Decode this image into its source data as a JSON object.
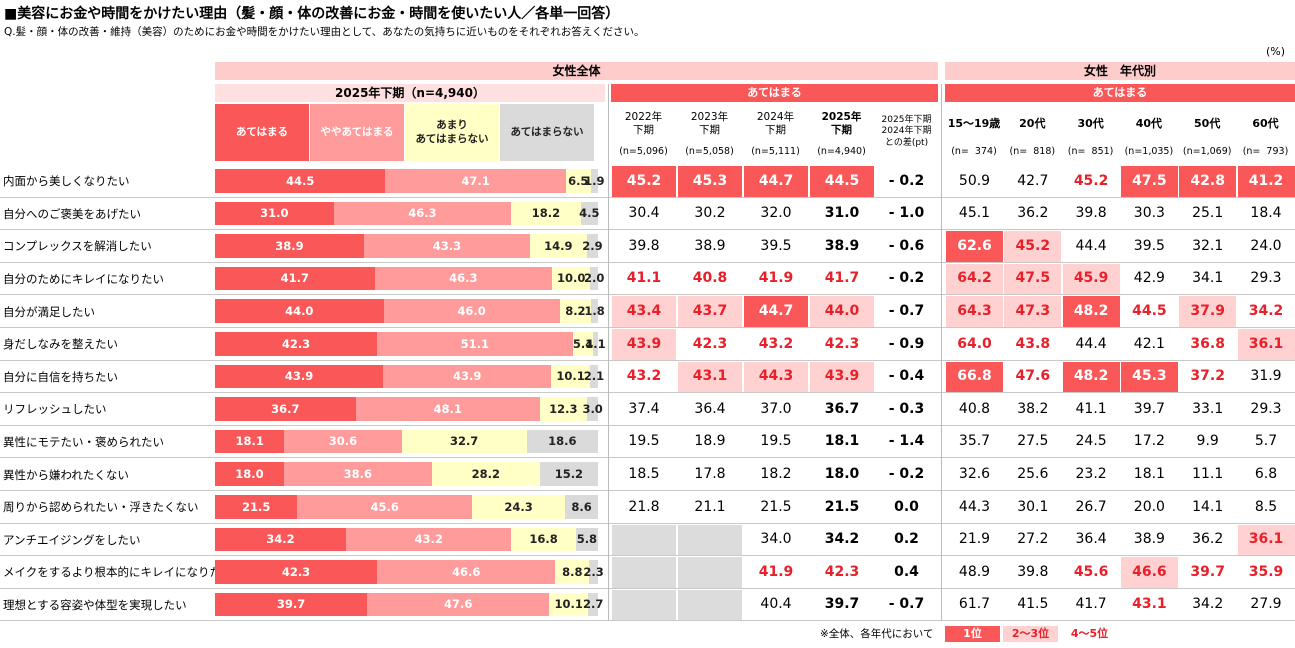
{
  "header": {
    "title": "■美容にお金や時間をかけたい理由（髪・顔・体の改善にお金・時間を使いたい人／各単一回答）",
    "question": "Q.髪・顔・体の改善・維持（美容）のためにお金や時間をかけたい理由として、あなたの気持ちに近いものをそれぞれお答えください。",
    "unit": "(%)"
  },
  "chart_data": {
    "type": "bar",
    "orientation": "horizontal",
    "stacked": true,
    "title": "女性全体",
    "subtitle": "2025年下期（n=4,940）",
    "categories": [
      "内面から美しくなりたい",
      "自分へのご褒美をあげたい",
      "コンプレックスを解消したい",
      "自分のためにキレイになりたい",
      "自分が満足したい",
      "身だしなみを整えたい",
      "自分に自信を持ちたい",
      "リフレッシュしたい",
      "異性にモテたい・褒められたい",
      "異性から嫌われたくない",
      "周りから認められたい・浮きたくない",
      "アンチエイジングをしたい",
      "メイクをするより根本的にキレイになりたい",
      "理想とする容姿や体型を実現したい"
    ],
    "xlim": [
      0,
      100
    ],
    "series": [
      {
        "name": "あてはまる",
        "color": "#fa5858",
        "values": [
          44.5,
          31.0,
          38.9,
          41.7,
          44.0,
          42.3,
          43.9,
          36.7,
          18.1,
          18.0,
          21.5,
          34.2,
          42.3,
          39.7
        ],
        "value_labels": [
          "44.5",
          "31.0",
          "38.9",
          "41.7",
          "44.0",
          "42.3",
          "43.9",
          "36.7",
          "18.1",
          "18.0",
          "21.5",
          "34.2",
          "42.3",
          "39.7"
        ]
      },
      {
        "name": "ややあてはまる",
        "color": "#ff9b9b",
        "values": [
          47.1,
          46.3,
          43.3,
          46.3,
          46.0,
          51.1,
          43.9,
          48.1,
          30.6,
          38.6,
          45.6,
          43.2,
          46.6,
          47.6
        ],
        "value_labels": [
          "47.1",
          "46.3",
          "43.3",
          "46.3",
          "46.0",
          "51.1",
          "43.9",
          "48.1",
          "30.6",
          "38.6",
          "45.6",
          "43.2",
          "46.6",
          "47.6"
        ]
      },
      {
        "name": "あまり\nあてはまらない",
        "color": "#ffffc6",
        "values": [
          6.5,
          18.2,
          14.9,
          10.0,
          8.2,
          5.4,
          10.1,
          12.3,
          32.7,
          28.2,
          24.3,
          16.8,
          8.8,
          10.1
        ],
        "value_labels": [
          "6.5",
          "18.2",
          "14.9",
          "10.0",
          "8.2",
          "5.4",
          "10.1",
          "12.3",
          "32.7",
          "28.2",
          "24.3",
          "16.8",
          "8.8",
          "10.1"
        ]
      },
      {
        "name": "あてはまらない",
        "color": "#dadada",
        "values": [
          1.9,
          4.5,
          2.9,
          2.0,
          1.8,
          1.1,
          2.1,
          3.0,
          18.6,
          15.2,
          8.6,
          5.8,
          2.3,
          2.7
        ],
        "value_labels": [
          "1.9",
          "4.5",
          "2.9",
          "2.0",
          "1.8",
          "1.1",
          "2.1",
          "3.0",
          "18.6",
          "15.2",
          "8.6",
          "5.8",
          "2.3",
          "2.7"
        ]
      }
    ]
  },
  "trend_table": {
    "header": "あてはまる",
    "columns": [
      {
        "label": "2022年\n下期",
        "n": "(n=5,096)"
      },
      {
        "label": "2023年\n下期",
        "n": "(n=5,058)"
      },
      {
        "label": "2024年\n下期",
        "n": "(n=5,111)"
      },
      {
        "label": "2025年\n下期",
        "n": "(n=4,940)"
      }
    ],
    "diff_header": "2025年下期\n2024年下期\nとの差(pt)",
    "rows": [
      {
        "values": [
          "45.2",
          "45.3",
          "44.7",
          "44.5"
        ],
        "highlight": [
          0,
          0,
          0,
          0
        ],
        "diff": "- 0.2"
      },
      {
        "values": [
          "30.4",
          "30.2",
          "32.0",
          "31.0"
        ],
        "highlight": [
          null,
          null,
          null,
          null
        ],
        "diff": "- 1.0"
      },
      {
        "values": [
          "39.8",
          "38.9",
          "39.5",
          "38.9"
        ],
        "highlight": [
          null,
          null,
          null,
          null
        ],
        "diff": "- 0.6"
      },
      {
        "values": [
          "41.1",
          "40.8",
          "41.9",
          "41.7"
        ],
        "highlight": [
          2,
          2,
          2,
          2
        ],
        "diff": "- 0.2"
      },
      {
        "values": [
          "43.4",
          "43.7",
          "44.7",
          "44.0"
        ],
        "highlight": [
          1,
          1,
          0,
          1
        ],
        "diff": "- 0.7"
      },
      {
        "values": [
          "43.9",
          "42.3",
          "43.2",
          "42.3"
        ],
        "highlight": [
          1,
          2,
          2,
          2
        ],
        "diff": "- 0.9"
      },
      {
        "values": [
          "43.2",
          "43.1",
          "44.3",
          "43.9"
        ],
        "highlight": [
          2,
          1,
          1,
          1
        ],
        "diff": "- 0.4"
      },
      {
        "values": [
          "37.4",
          "36.4",
          "37.0",
          "36.7"
        ],
        "highlight": [
          null,
          null,
          null,
          null
        ],
        "diff": "- 0.3"
      },
      {
        "values": [
          "19.5",
          "18.9",
          "19.5",
          "18.1"
        ],
        "highlight": [
          null,
          null,
          null,
          null
        ],
        "diff": "- 1.4"
      },
      {
        "values": [
          "18.5",
          "17.8",
          "18.2",
          "18.0"
        ],
        "highlight": [
          null,
          null,
          null,
          null
        ],
        "diff": "- 0.2"
      },
      {
        "values": [
          "21.8",
          "21.1",
          "21.5",
          "21.5"
        ],
        "highlight": [
          null,
          null,
          null,
          null
        ],
        "diff": "0.0"
      },
      {
        "values": [
          null,
          null,
          "34.0",
          "34.2"
        ],
        "highlight": [
          null,
          null,
          null,
          null
        ],
        "diff": "0.2"
      },
      {
        "values": [
          null,
          null,
          "41.9",
          "42.3"
        ],
        "highlight": [
          null,
          null,
          2,
          2
        ],
        "diff": "0.4"
      },
      {
        "values": [
          null,
          null,
          "40.4",
          "39.7"
        ],
        "highlight": [
          null,
          null,
          null,
          null
        ],
        "diff": "- 0.7"
      }
    ]
  },
  "age_table": {
    "title": "女性　年代別",
    "header": "あてはまる",
    "columns": [
      {
        "label": "15～19歳",
        "n": "(n=  374)"
      },
      {
        "label": "20代",
        "n": "(n=  818)"
      },
      {
        "label": "30代",
        "n": "(n=  851)"
      },
      {
        "label": "40代",
        "n": "(n=1,035)"
      },
      {
        "label": "50代",
        "n": "(n=1,069)"
      },
      {
        "label": "60代",
        "n": "(n=  793)"
      }
    ],
    "rows": [
      {
        "values": [
          "50.9",
          "42.7",
          "45.2",
          "47.5",
          "42.8",
          "41.2"
        ],
        "highlight": [
          null,
          null,
          2,
          0,
          0,
          0
        ]
      },
      {
        "values": [
          "45.1",
          "36.2",
          "39.8",
          "30.3",
          "25.1",
          "18.4"
        ],
        "highlight": [
          null,
          null,
          null,
          null,
          null,
          null
        ]
      },
      {
        "values": [
          "62.6",
          "45.2",
          "44.4",
          "39.5",
          "32.1",
          "24.0"
        ],
        "highlight": [
          0,
          1,
          null,
          null,
          null,
          null
        ]
      },
      {
        "values": [
          "64.2",
          "47.5",
          "45.9",
          "42.9",
          "34.1",
          "29.3"
        ],
        "highlight": [
          1,
          1,
          1,
          null,
          null,
          null
        ]
      },
      {
        "values": [
          "64.3",
          "47.3",
          "48.2",
          "44.5",
          "37.9",
          "34.2"
        ],
        "highlight": [
          1,
          1,
          0,
          2,
          1,
          2
        ]
      },
      {
        "values": [
          "64.0",
          "43.8",
          "44.4",
          "42.1",
          "36.8",
          "36.1"
        ],
        "highlight": [
          2,
          2,
          null,
          null,
          2,
          1
        ]
      },
      {
        "values": [
          "66.8",
          "47.6",
          "48.2",
          "45.3",
          "37.2",
          "31.9"
        ],
        "highlight": [
          0,
          2,
          0,
          0,
          2,
          null
        ]
      },
      {
        "values": [
          "40.8",
          "38.2",
          "41.1",
          "39.7",
          "33.1",
          "29.3"
        ],
        "highlight": [
          null,
          null,
          null,
          null,
          null,
          null
        ]
      },
      {
        "values": [
          "35.7",
          "27.5",
          "24.5",
          "17.2",
          "9.9",
          "5.7"
        ],
        "highlight": [
          null,
          null,
          null,
          null,
          null,
          null
        ]
      },
      {
        "values": [
          "32.6",
          "25.6",
          "23.2",
          "18.1",
          "11.1",
          "6.8"
        ],
        "highlight": [
          null,
          null,
          null,
          null,
          null,
          null
        ]
      },
      {
        "values": [
          "44.3",
          "30.1",
          "26.7",
          "20.0",
          "14.1",
          "8.5"
        ],
        "highlight": [
          null,
          null,
          null,
          null,
          null,
          null
        ]
      },
      {
        "values": [
          "21.9",
          "27.2",
          "36.4",
          "38.9",
          "36.2",
          "36.1"
        ],
        "highlight": [
          null,
          null,
          null,
          null,
          null,
          1
        ]
      },
      {
        "values": [
          "48.9",
          "39.8",
          "45.6",
          "46.6",
          "39.7",
          "35.9"
        ],
        "highlight": [
          null,
          null,
          2,
          1,
          2,
          2
        ]
      },
      {
        "values": [
          "61.7",
          "41.5",
          "41.7",
          "43.1",
          "34.2",
          "27.9"
        ],
        "highlight": [
          null,
          null,
          null,
          2,
          null,
          null
        ]
      }
    ]
  },
  "footnote": {
    "note": "※全体、各年代において",
    "legend": [
      "1位",
      "2～3位",
      "4～5位"
    ]
  }
}
